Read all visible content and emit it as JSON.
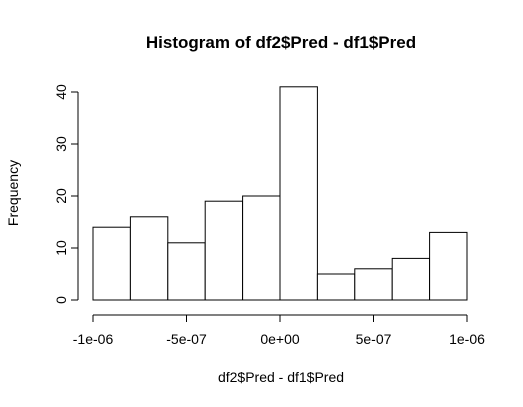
{
  "chart_data": {
    "type": "bar",
    "title": "Histogram of df2$Pred - df1$Pred",
    "xlabel": "df2$Pred - df1$Pred",
    "ylabel": "Frequency",
    "bin_edges": [
      -1e-06,
      -8e-07,
      -6e-07,
      -4e-07,
      -2e-07,
      0,
      2e-07,
      4e-07,
      6e-07,
      8e-07,
      1e-06
    ],
    "values": [
      14,
      16,
      11,
      19,
      20,
      41,
      5,
      6,
      8,
      13
    ],
    "xlim": [
      -1e-06,
      1e-06
    ],
    "ylim": [
      0,
      40
    ],
    "x_ticks": [
      {
        "value": -1e-06,
        "label": "-1e-06"
      },
      {
        "value": -5e-07,
        "label": "-5e-07"
      },
      {
        "value": 0,
        "label": "0e+00"
      },
      {
        "value": 5e-07,
        "label": "5e-07"
      },
      {
        "value": 1e-06,
        "label": "1e-06"
      }
    ],
    "y_ticks": [
      {
        "value": 0,
        "label": "0"
      },
      {
        "value": 10,
        "label": "10"
      },
      {
        "value": 20,
        "label": "20"
      },
      {
        "value": 30,
        "label": "30"
      },
      {
        "value": 40,
        "label": "40"
      }
    ],
    "grid": false,
    "bar_fill": "#ffffff",
    "bar_stroke": "#000000"
  }
}
